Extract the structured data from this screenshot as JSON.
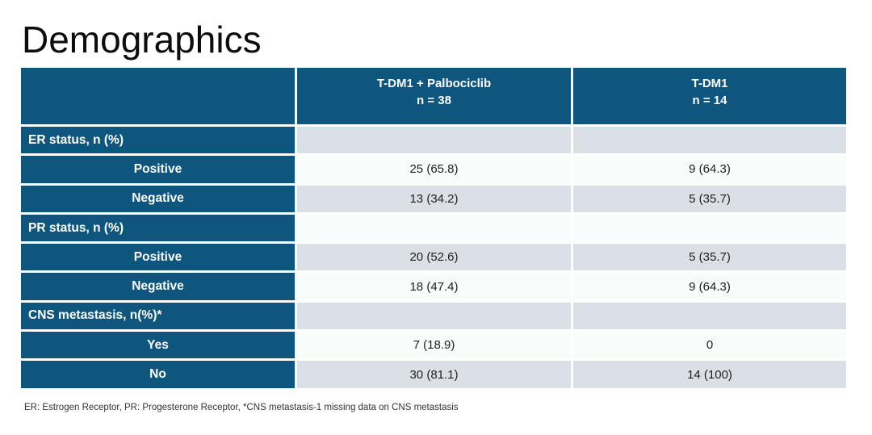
{
  "slide": {
    "title": "Demographics",
    "footnote": "ER: Estrogen Receptor, PR: Progesterone Receptor, *CNS metastasis-1 missing data on CNS metastasis"
  },
  "colors": {
    "header_blue": "#0e567e",
    "stripe_gray": "#dbe0e7",
    "stripe_white": "#f8fcfa",
    "title_text": "#0d0d0d",
    "cell_text": "#202020",
    "header_text": "#ffffff"
  },
  "table": {
    "col_headers": [
      {
        "title": "T-DM1 + Palbociclib",
        "subtitle": "n = 38"
      },
      {
        "title": "T-DM1",
        "subtitle": "n = 14"
      }
    ],
    "rows": [
      {
        "label": "ER status, n (%)",
        "type": "section",
        "values": [
          "",
          ""
        ]
      },
      {
        "label": "Positive",
        "type": "sub",
        "values": [
          "25 (65.8)",
          "9 (64.3)"
        ]
      },
      {
        "label": "Negative",
        "type": "sub",
        "values": [
          "13 (34.2)",
          "5 (35.7)"
        ]
      },
      {
        "label": "PR status, n (%)",
        "type": "section",
        "values": [
          "",
          ""
        ]
      },
      {
        "label": "Positive",
        "type": "sub",
        "values": [
          "20 (52.6)",
          "5 (35.7)"
        ]
      },
      {
        "label": "Negative",
        "type": "sub",
        "values": [
          "18 (47.4)",
          "9 (64.3)"
        ]
      },
      {
        "label": "CNS metastasis, n(%)*",
        "type": "section",
        "values": [
          "",
          ""
        ]
      },
      {
        "label": "Yes",
        "type": "sub",
        "values": [
          "7 (18.9)",
          "0"
        ]
      },
      {
        "label": "No",
        "type": "sub",
        "values": [
          "30 (81.1)",
          "14 (100)"
        ]
      }
    ]
  },
  "chart_data": {
    "type": "table",
    "columns": [
      "",
      "T-DM1 + Palbociclib (n = 38)",
      "T-DM1 (n = 14)"
    ],
    "rows": [
      [
        "ER status, n (%)",
        "",
        ""
      ],
      [
        "Positive",
        "25 (65.8)",
        "9 (64.3)"
      ],
      [
        "Negative",
        "13 (34.2)",
        "5 (35.7)"
      ],
      [
        "PR status, n (%)",
        "",
        ""
      ],
      [
        "Positive",
        "20 (52.6)",
        "5 (35.7)"
      ],
      [
        "Negative",
        "18 (47.4)",
        "9 (64.3)"
      ],
      [
        "CNS metastasis, n(%)*",
        "",
        ""
      ],
      [
        "Yes",
        "7 (18.9)",
        "0"
      ],
      [
        "No",
        "30 (81.1)",
        "14 (100)"
      ]
    ],
    "title": "Demographics"
  }
}
